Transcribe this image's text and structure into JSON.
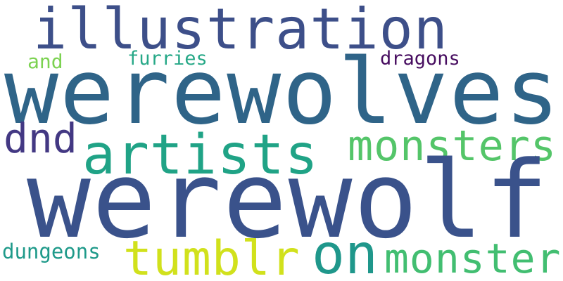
{
  "words": {
    "illustration": {
      "text": "illustration",
      "color": "#3d4f89"
    },
    "werewolves": {
      "text": "werewolves",
      "color": "#2f6488"
    },
    "and": {
      "text": "and",
      "color": "#7cd251"
    },
    "furries": {
      "text": "furries",
      "color": "#26a887"
    },
    "dragons": {
      "text": "dragons",
      "color": "#470d60"
    },
    "dnd": {
      "text": "dnd",
      "color": "#433883"
    },
    "artists": {
      "text": "artists",
      "color": "#20a386"
    },
    "monsters": {
      "text": "monsters",
      "color": "#54c569"
    },
    "werewolf": {
      "text": "werewolf",
      "color": "#3a528b"
    },
    "dungeons": {
      "text": "dungeons",
      "color": "#1f9a8a"
    },
    "tumblr": {
      "text": "tumblr",
      "color": "#d1e11c"
    },
    "on": {
      "text": "on",
      "color": "#1f978b"
    },
    "monster": {
      "text": "monster",
      "color": "#42be71"
    }
  }
}
